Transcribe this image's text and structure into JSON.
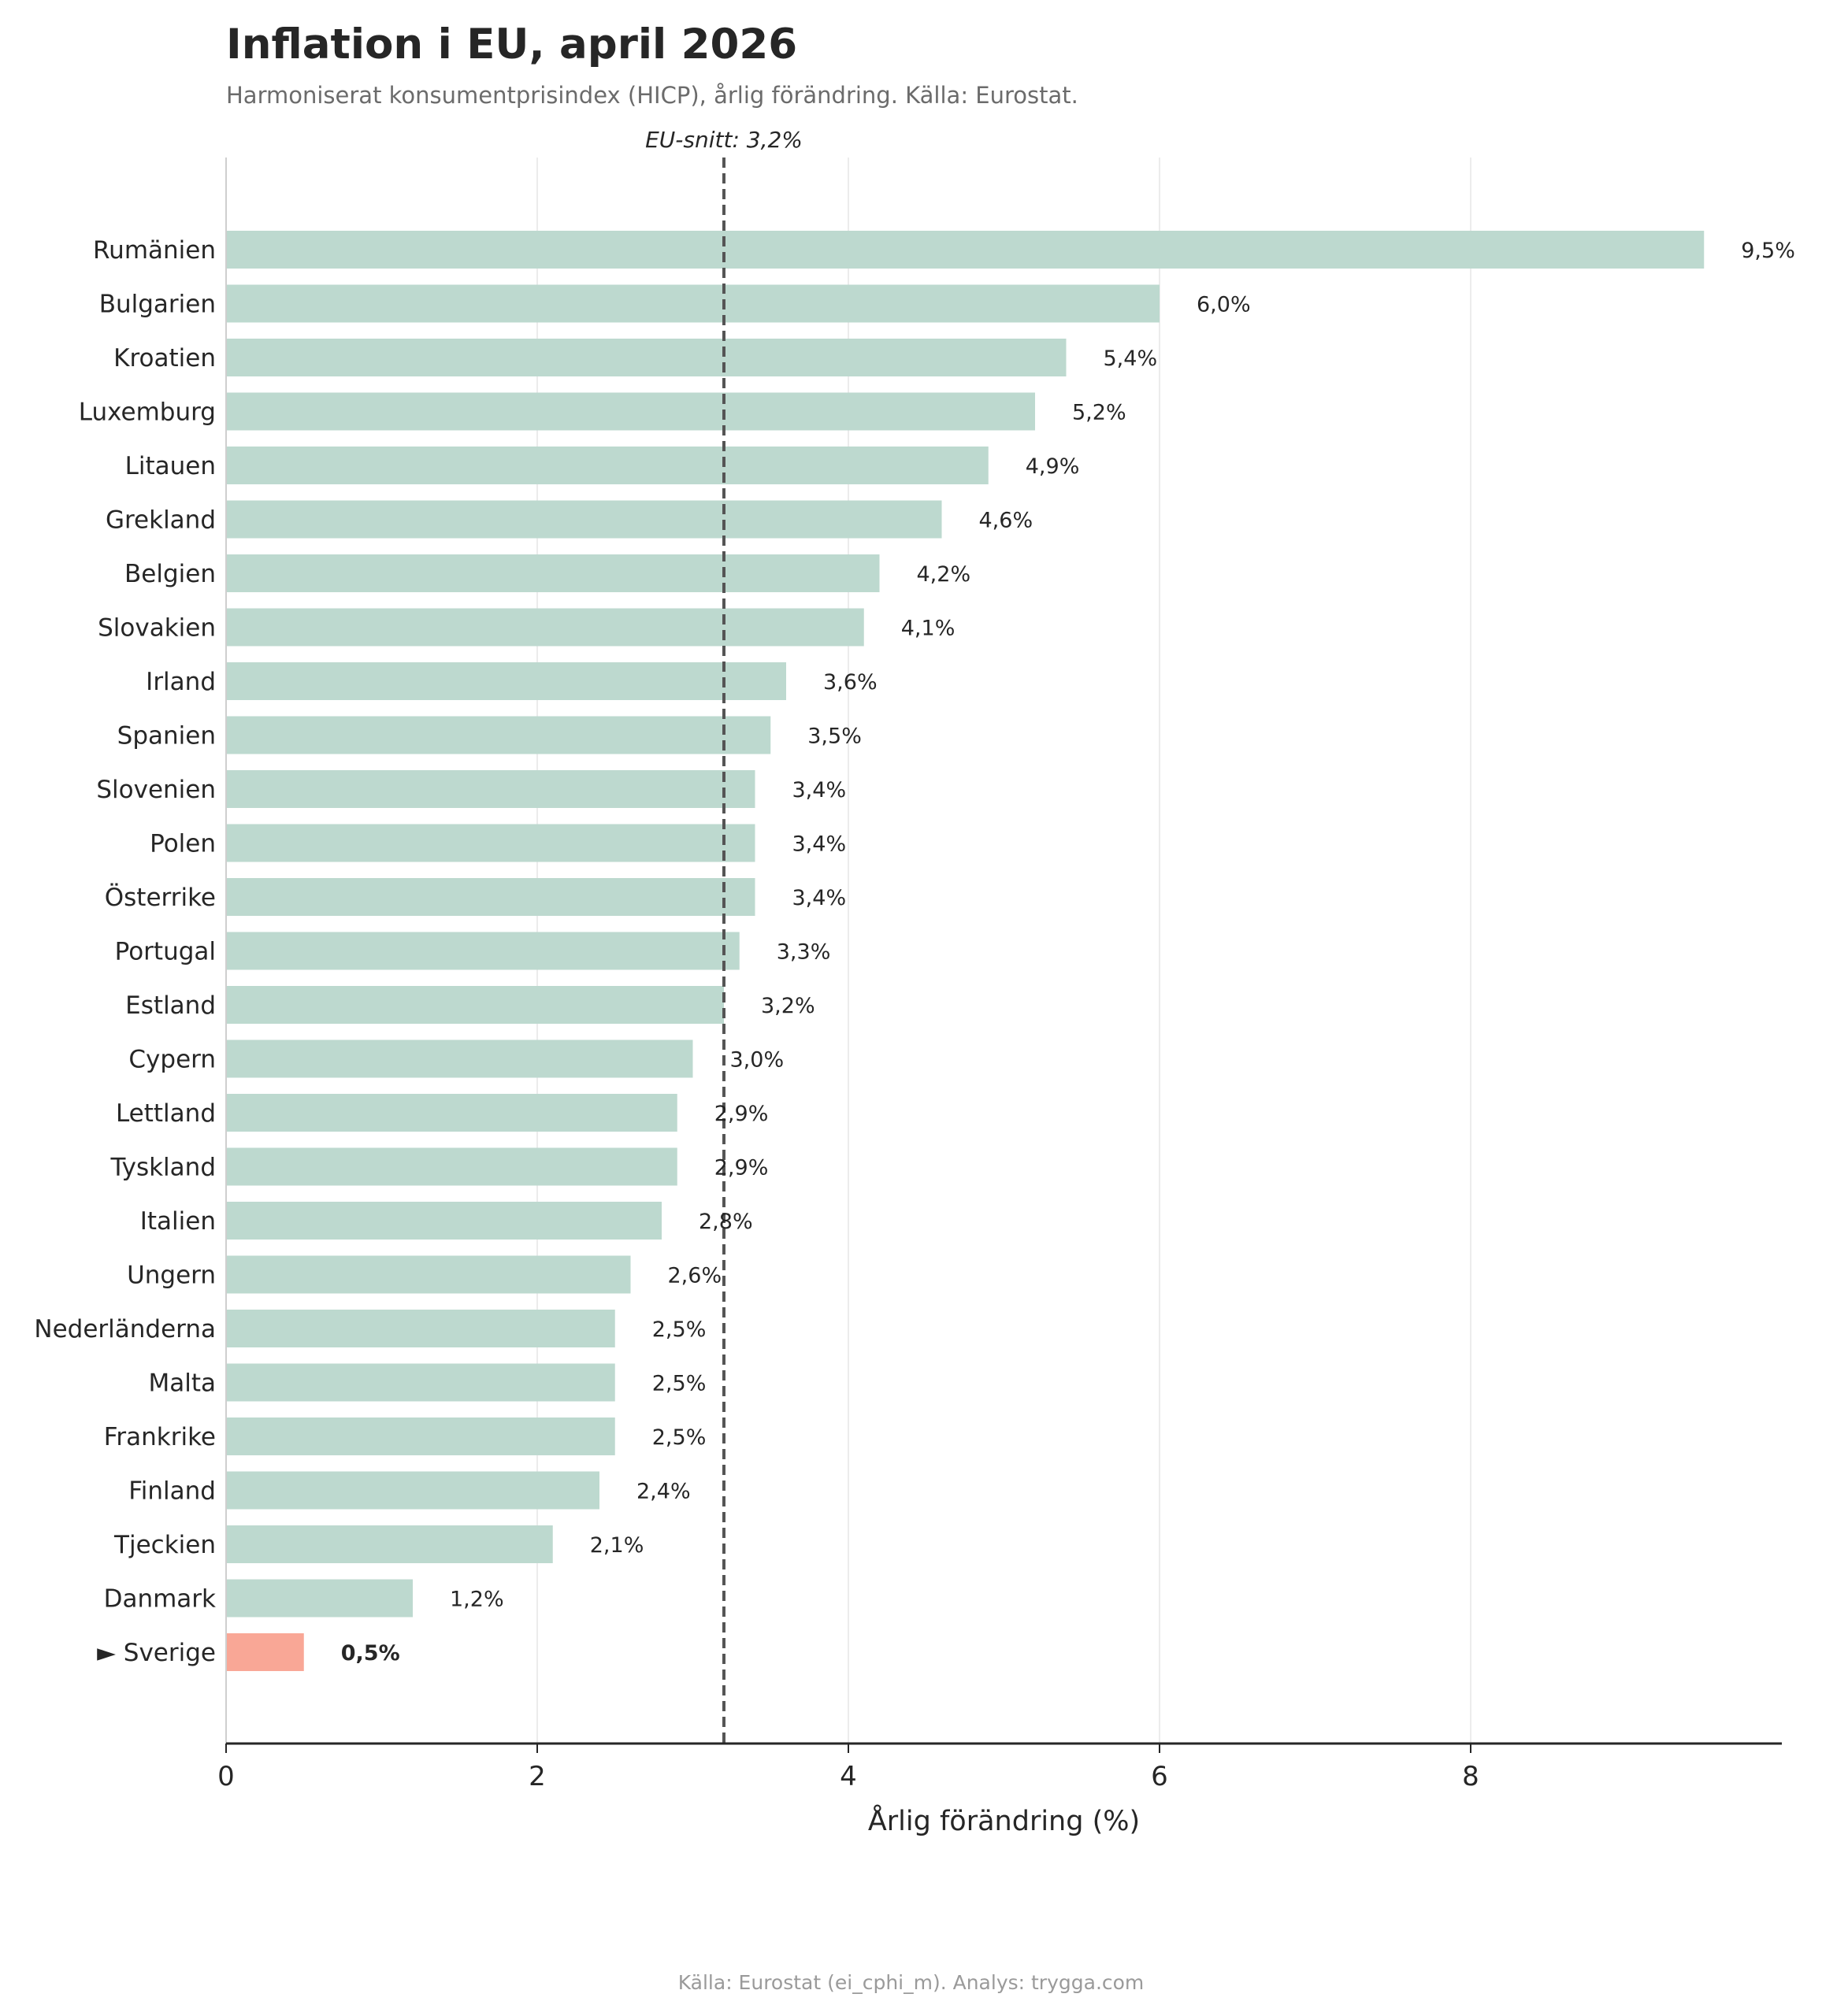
{
  "header": {
    "title": "Inflation i EU, april 2026",
    "subtitle": "Harmoniserat konsumentprisindex (HICP), årlig förändring. Källa: Eurostat."
  },
  "footer": {
    "source_text": "Källa: Eurostat (ei_cphi_m). Analys: trygga.com"
  },
  "chart_data": {
    "type": "bar",
    "orientation": "horizontal",
    "title": "Inflation i EU, april 2026",
    "subtitle": "Harmoniserat konsumentprisindex (HICP), årlig förändring. Källa: Eurostat.",
    "xlabel": "Årlig förändring (%)",
    "ylabel": "",
    "xlim": [
      0,
      10
    ],
    "xticks": [
      0,
      2,
      4,
      6,
      8
    ],
    "grid": "vertical",
    "categories": [
      "Rumänien",
      "Bulgarien",
      "Kroatien",
      "Luxemburg",
      "Litauen",
      "Grekland",
      "Belgien",
      "Slovakien",
      "Irland",
      "Spanien",
      "Slovenien",
      "Polen",
      "Österrike",
      "Portugal",
      "Estland",
      "Cypern",
      "Lettland",
      "Tyskland",
      "Italien",
      "Ungern",
      "Nederländerna",
      "Malta",
      "Frankrike",
      "Finland",
      "Tjeckien",
      "Danmark",
      "► Sverige"
    ],
    "values": [
      9.5,
      6.0,
      5.4,
      5.2,
      4.9,
      4.6,
      4.2,
      4.1,
      3.6,
      3.5,
      3.4,
      3.4,
      3.4,
      3.3,
      3.2,
      3.0,
      2.9,
      2.9,
      2.8,
      2.6,
      2.5,
      2.5,
      2.5,
      2.4,
      2.1,
      1.2,
      0.5
    ],
    "value_labels": [
      "9,5%",
      "6,0%",
      "5,4%",
      "5,2%",
      "4,9%",
      "4,6%",
      "4,2%",
      "4,1%",
      "3,6%",
      "3,5%",
      "3,4%",
      "3,4%",
      "3,4%",
      "3,3%",
      "3,2%",
      "3,0%",
      "2,9%",
      "2,9%",
      "2,8%",
      "2,6%",
      "2,5%",
      "2,5%",
      "2,5%",
      "2,4%",
      "2,1%",
      "1,2%",
      "0,5%"
    ],
    "highlight_index": 26,
    "reference_line": {
      "value": 3.2,
      "label": "EU-snitt: 3,2%",
      "style": "dashed"
    },
    "colors": {
      "bar": "#bdd9cf",
      "highlight": "#f9a796",
      "reference_line": "#555555",
      "grid": "#ececec",
      "text": "#262626"
    }
  }
}
